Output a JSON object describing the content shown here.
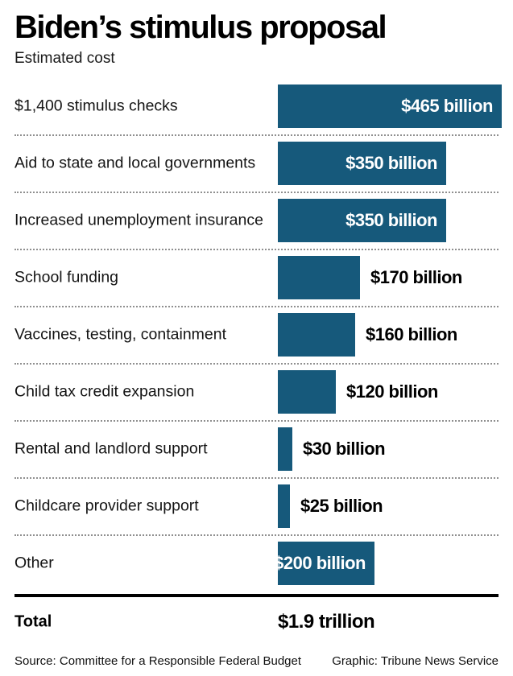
{
  "page": {
    "title": "Biden’s stimulus proposal",
    "subtitle": "Estimated cost"
  },
  "chart_data": {
    "type": "bar",
    "orientation": "horizontal",
    "title": "Biden’s stimulus proposal",
    "subtitle": "Estimated cost",
    "unit": "USD billions",
    "bar_color": "#16597B",
    "xlim": [
      0,
      465
    ],
    "grid": false,
    "legend": false,
    "categories": [
      "$1,400 stimulus checks",
      "Aid to state and local governments",
      "Increased unemployment insurance",
      "School funding",
      "Vaccines, testing, containment",
      "Child tax credit expansion",
      "Rental and landlord support",
      "Childcare provider support",
      "Other"
    ],
    "values": [
      465,
      350,
      350,
      170,
      160,
      120,
      30,
      25,
      200
    ],
    "value_labels": [
      "$465 billion",
      "$350 billion",
      "$350 billion",
      "$170 billion",
      "$160 billion",
      "$120 billion",
      "$30 billion",
      "$25 billion",
      "$200 billion"
    ],
    "label_placement": [
      "inside",
      "inside",
      "inside",
      "outside",
      "outside",
      "outside",
      "outside",
      "outside",
      "inside"
    ],
    "total": {
      "label": "Total",
      "value": "$1.9 trillion"
    }
  },
  "footer": {
    "source": "Source: Committee for a Responsible Federal Budget",
    "credit": "Graphic: Tribune News Service"
  }
}
